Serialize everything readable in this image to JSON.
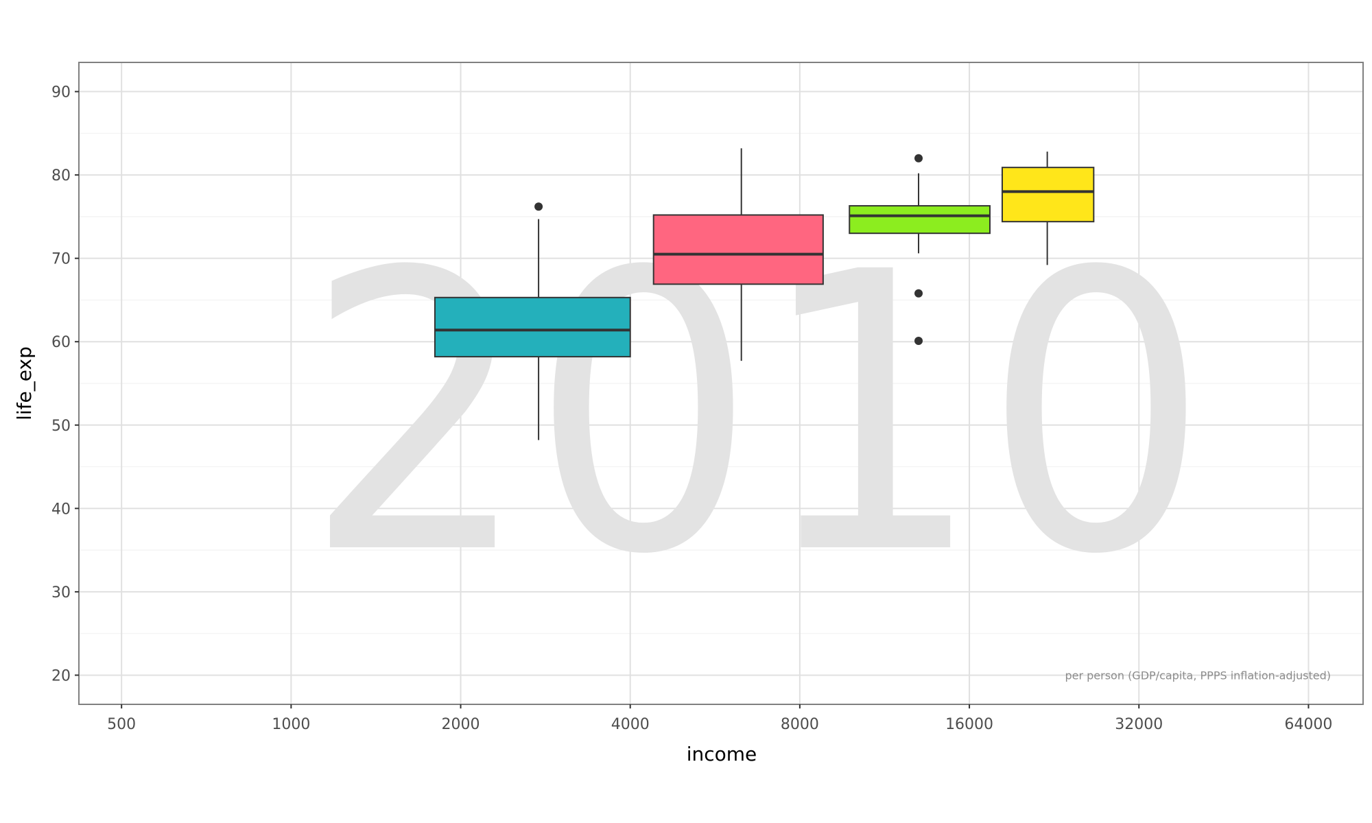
{
  "chart_data": {
    "type": "box",
    "watermark": "2010",
    "xlabel": "income",
    "ylabel": "life_exp",
    "annotation": "per person (GDP/capita, PPPS inflation-adjusted)",
    "x_scale": "log2",
    "xlim": [
      420,
      80000
    ],
    "ylim": [
      16.5,
      93.5
    ],
    "x_ticks": [
      500,
      1000,
      2000,
      4000,
      8000,
      16000,
      32000,
      64000
    ],
    "y_ticks": [
      20,
      30,
      40,
      50,
      60,
      70,
      80,
      90
    ],
    "grid": true,
    "legend": "none",
    "boxes": [
      {
        "x_min": 1800,
        "x_max": 4000,
        "x_center": 2750,
        "whisker_low": 48.2,
        "q1": 58.2,
        "median": 61.4,
        "q3": 65.3,
        "whisker_high": 74.7,
        "outliers": [
          76.2
        ],
        "color": "#24b0bb"
      },
      {
        "x_min": 4400,
        "x_max": 8800,
        "x_center": 6300,
        "whisker_low": 57.7,
        "q1": 66.9,
        "median": 70.5,
        "q3": 75.2,
        "whisker_high": 83.2,
        "outliers": [],
        "color": "#ff6680"
      },
      {
        "x_min": 9800,
        "x_max": 17400,
        "x_center": 13000,
        "whisker_low": 70.6,
        "q1": 73.0,
        "median": 75.1,
        "q3": 76.3,
        "whisker_high": 80.2,
        "outliers": [
          82.0,
          65.8,
          60.1
        ],
        "color": "#8ced1f"
      },
      {
        "x_min": 18300,
        "x_max": 26600,
        "x_center": 22000,
        "whisker_low": 69.2,
        "q1": 74.4,
        "median": 78.0,
        "q3": 80.9,
        "whisker_high": 82.8,
        "outliers": [],
        "color": "#ffe61a"
      }
    ]
  }
}
